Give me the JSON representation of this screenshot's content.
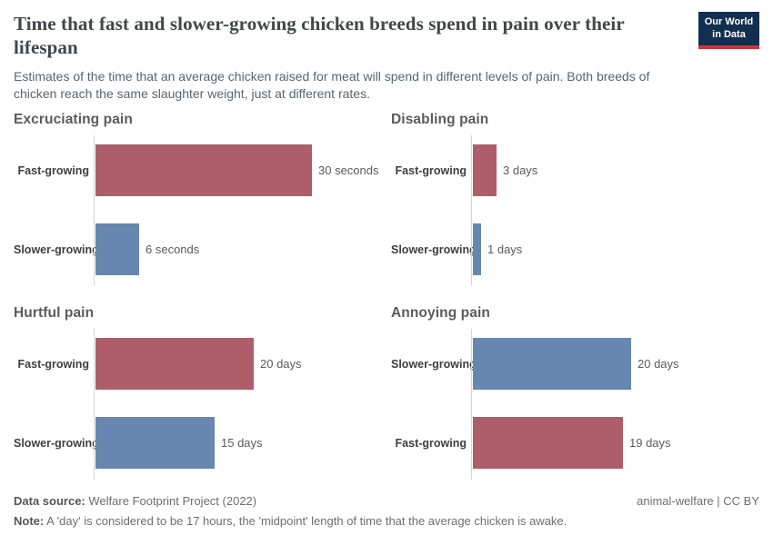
{
  "header": {
    "title": "Time that fast and slower-growing chicken breeds spend in pain over their lifespan",
    "subtitle": "Estimates of the time that an average chicken raised for meat will spend in different levels of pain. Both breeds of chicken reach the same slaughter weight, just at different rates.",
    "logo": {
      "line1": "Our World",
      "line2": "in Data"
    }
  },
  "colors": {
    "fast_growing_bar": "#ad5e68",
    "slower_growing_bar": "#6787b1",
    "axis_line": "#d5d5d5",
    "logo_navy": "#132f4f",
    "logo_red": "#d0333b"
  },
  "chart_data": [
    {
      "type": "bar",
      "orientation": "horizontal",
      "title": "Excruciating pain",
      "unit": "seconds",
      "axis_max": 34,
      "grid": false,
      "rows": [
        {
          "label": "Fast-growing",
          "series": "fast_growing",
          "value": 30,
          "display": "30 seconds"
        },
        {
          "label": "Slower-growing",
          "series": "slower_growing",
          "value": 6,
          "display": "6 seconds"
        }
      ]
    },
    {
      "type": "bar",
      "orientation": "horizontal",
      "title": "Disabling pain",
      "unit": "days",
      "axis_max": 31,
      "grid": false,
      "rows": [
        {
          "label": "Fast-growing",
          "series": "fast_growing",
          "value": 3,
          "display": "3 days"
        },
        {
          "label": "Slower-growing",
          "series": "slower_growing",
          "value": 1,
          "display": "1 days"
        }
      ]
    },
    {
      "type": "bar",
      "orientation": "horizontal",
      "title": "Hurtful pain",
      "unit": "days",
      "axis_max": 31,
      "grid": false,
      "rows": [
        {
          "label": "Fast-growing",
          "series": "fast_growing",
          "value": 20,
          "display": "20 days"
        },
        {
          "label": "Slower-growing",
          "series": "slower_growing",
          "value": 15,
          "display": "15 days"
        }
      ]
    },
    {
      "type": "bar",
      "orientation": "horizontal",
      "title": "Annoying pain",
      "unit": "days",
      "axis_max": 31,
      "grid": false,
      "rows": [
        {
          "label": "Slower-growing",
          "series": "slower_growing",
          "value": 20,
          "display": "20 days"
        },
        {
          "label": "Fast-growing",
          "series": "fast_growing",
          "value": 19,
          "display": "19 days"
        }
      ]
    }
  ],
  "footer": {
    "source_label": "Data source:",
    "source_text": "Welfare Footprint Project (2022)",
    "license": "animal-welfare | CC BY",
    "note_label": "Note:",
    "note_text": "A 'day' is considered to be 17 hours, the 'midpoint' length of time that the average chicken is awake."
  }
}
